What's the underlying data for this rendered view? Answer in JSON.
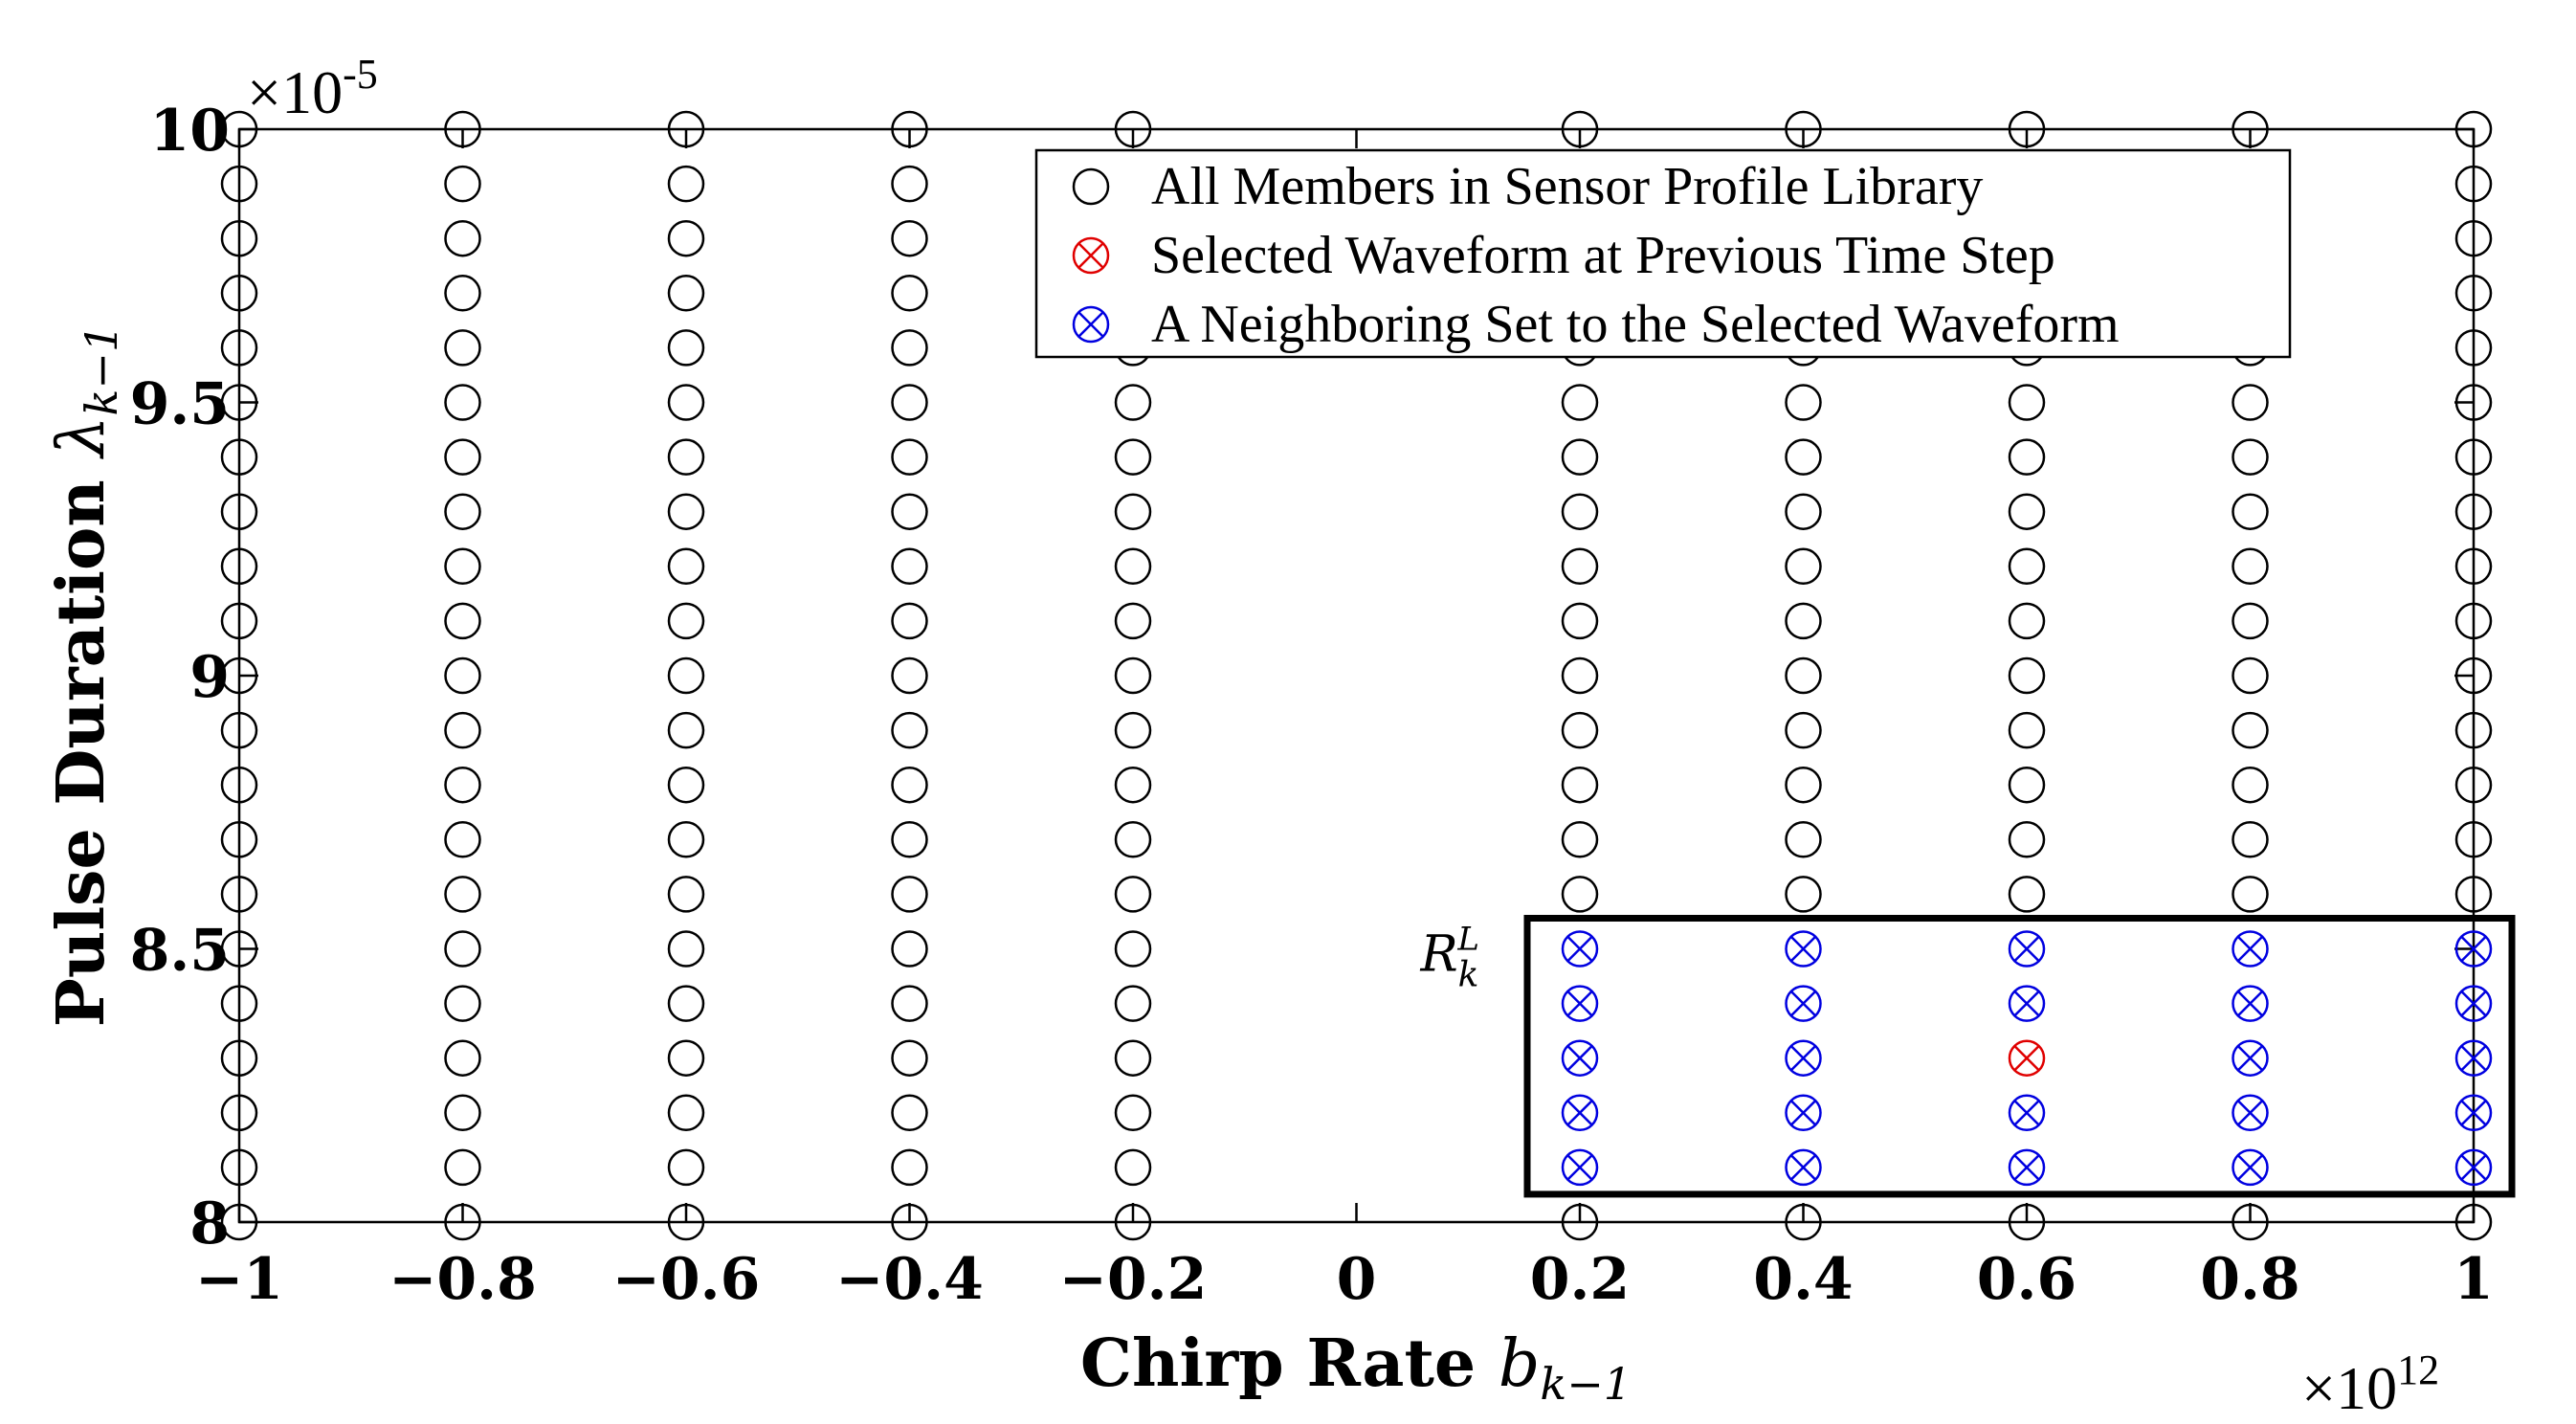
{
  "chart_data": {
    "type": "scatter",
    "xlabel": "Chirp Rate",
    "xlabel_math": "b",
    "xlabel_sub": "k−1",
    "ylabel": "Pulse Duration",
    "ylabel_math": "λ",
    "ylabel_sub": "k−1",
    "x_multiplier_base": "×10",
    "x_multiplier_exp": "12",
    "y_multiplier_base": "×10",
    "y_multiplier_exp": "-5",
    "xlim": [
      -1,
      1
    ],
    "ylim": [
      8,
      10
    ],
    "x_ticks": [
      -1,
      -0.8,
      -0.6,
      -0.4,
      -0.2,
      0,
      0.2,
      0.4,
      0.6,
      0.8,
      1
    ],
    "x_tick_labels": [
      "−1",
      "−0.8",
      "−0.6",
      "−0.4",
      "−0.2",
      "0",
      "0.2",
      "0.4",
      "0.6",
      "0.8",
      "1"
    ],
    "y_ticks": [
      8,
      8.5,
      9,
      9.5,
      10
    ],
    "y_tick_labels": [
      "8",
      "8.5",
      "9",
      "9.5",
      "10"
    ],
    "library_x": [
      -1,
      -0.8,
      -0.6,
      -0.4,
      -0.2,
      0.2,
      0.4,
      0.6,
      0.8,
      1
    ],
    "library_y": [
      8.0,
      8.1,
      8.2,
      8.3,
      8.4,
      8.5,
      8.6,
      8.7,
      8.8,
      8.9,
      9.0,
      9.1,
      9.2,
      9.3,
      9.4,
      9.5,
      9.6,
      9.7,
      9.8,
      9.9,
      10.0
    ],
    "selected": {
      "x": 0.6,
      "y": 8.3
    },
    "neighbor_x": [
      0.2,
      0.4,
      0.6,
      0.8,
      1
    ],
    "neighbor_y": [
      8.1,
      8.2,
      8.3,
      8.4,
      8.5
    ],
    "legend_position": "top-right",
    "legend": [
      {
        "label": "All Members in Sensor Profile Library",
        "marker": "circle",
        "color": "#000000"
      },
      {
        "label": "Selected Waveform at Previous Time Step",
        "marker": "circle-x",
        "color": "#e00000"
      },
      {
        "label": "A Neighboring Set to the Selected Waveform",
        "marker": "circle-x",
        "color": "#0000e0"
      }
    ],
    "box_label": "R",
    "box_label_sub": "k",
    "box_label_sup": "L",
    "colors": {
      "library": "#000000",
      "selected": "#e00000",
      "neighbor": "#0000e0",
      "axes": "#000000"
    }
  }
}
